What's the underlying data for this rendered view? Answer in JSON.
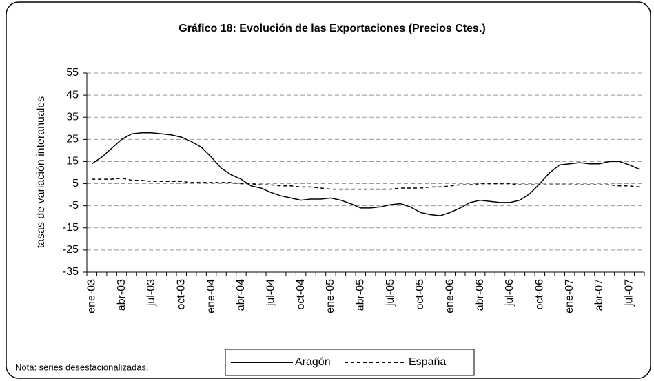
{
  "chart_data": {
    "type": "line",
    "title": "Gráfico 18: Evolución de las Exportaciones (Precios Ctes.)",
    "y_label": "tasas de variación interanuales",
    "note": "Nota: series desestacionalizadas.",
    "categories": [
      "ene-03",
      null,
      null,
      "abr-03",
      null,
      null,
      "jul-03",
      null,
      null,
      "oct-03",
      null,
      null,
      "ene-04",
      null,
      null,
      "abr-04",
      null,
      null,
      "jul-04",
      null,
      null,
      "oct-04",
      null,
      null,
      "ene-05",
      null,
      null,
      "abr-05",
      null,
      null,
      "jul-05",
      null,
      null,
      "oct-05",
      null,
      null,
      "ene-06",
      null,
      null,
      "abr-06",
      null,
      null,
      "jul-06",
      null,
      null,
      "oct-06",
      null,
      null,
      "ene-07",
      null,
      null,
      "abr-07",
      null,
      null,
      "jul-07",
      null
    ],
    "series": [
      {
        "name": "Aragón",
        "color": "#000000",
        "dash": "solid",
        "values": [
          14,
          17,
          21,
          25,
          27.5,
          28,
          28,
          27.5,
          27,
          26,
          24,
          21.5,
          17,
          12,
          9,
          7,
          4,
          3,
          1,
          -0.5,
          -1.5,
          -2.5,
          -2,
          -2,
          -1.5,
          -2.5,
          -4,
          -6,
          -6,
          -5.5,
          -4.5,
          -4,
          -5.5,
          -8,
          -9,
          -9.5,
          -8,
          -6,
          -3.5,
          -2.5,
          -3,
          -3.5,
          -3.5,
          -2.5,
          0.5,
          5,
          10,
          13.5,
          14,
          14.5,
          14,
          14,
          15,
          15,
          13.5,
          11.5
        ]
      },
      {
        "name": "España",
        "color": "#000000",
        "dash": "dashed",
        "values": [
          7,
          7,
          7,
          7.5,
          6.5,
          6.5,
          6,
          6,
          6,
          6,
          5.5,
          5.5,
          5.5,
          5.5,
          5.5,
          5,
          5,
          4.5,
          4.5,
          4,
          4,
          3.5,
          3.5,
          3,
          2.5,
          2.5,
          2.5,
          2.5,
          2.5,
          2.5,
          2.5,
          3,
          3,
          3,
          3.5,
          3.5,
          4,
          4.5,
          4.5,
          5,
          5,
          5,
          5,
          4.5,
          4.5,
          4.5,
          4.5,
          4.5,
          4.5,
          4.5,
          4.5,
          4.5,
          4.5,
          4,
          4,
          3.5
        ]
      }
    ],
    "ylim": [
      -35,
      55
    ],
    "yticks": [
      -35,
      -25,
      -15,
      -5,
      5,
      15,
      25,
      35,
      45,
      55
    ],
    "grid": true
  }
}
